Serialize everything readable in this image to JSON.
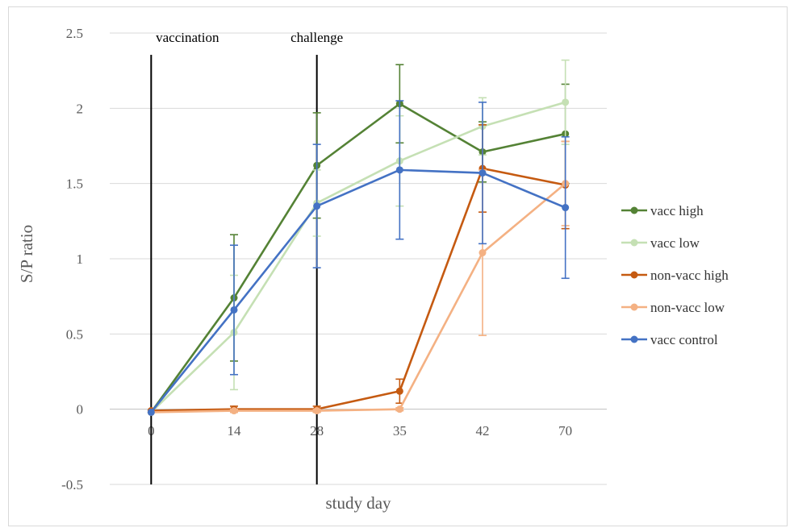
{
  "chart_data": {
    "type": "line",
    "title": "",
    "xlabel": "study day",
    "ylabel": "S/P ratio",
    "categories": [
      "0",
      "14",
      "28",
      "35",
      "42",
      "70"
    ],
    "ylim": [
      -0.5,
      2.5
    ],
    "yticks": [
      -0.5,
      0,
      0.5,
      1,
      1.5,
      2,
      2.5
    ],
    "ytick_labels": [
      "-0.5",
      "0",
      "0.5",
      "1",
      "1.5",
      "2",
      "2.5"
    ],
    "grid": "horizontal",
    "legend_position": "right",
    "annotations": [
      {
        "label": "vaccination",
        "category": "0"
      },
      {
        "label": "challenge",
        "category": "28"
      }
    ],
    "series": [
      {
        "name": "vacc high",
        "color": "#548235",
        "values": [
          -0.02,
          0.74,
          1.62,
          2.03,
          1.71,
          1.83
        ],
        "errors": [
          0,
          0.42,
          0.35,
          0.26,
          0.2,
          0.33
        ]
      },
      {
        "name": "vacc low",
        "color": "#c5e0b4",
        "values": [
          -0.02,
          0.51,
          1.37,
          1.65,
          1.88,
          2.04
        ],
        "errors": [
          0,
          0.38,
          0.22,
          0.3,
          0.19,
          0.28
        ]
      },
      {
        "name": "non-vacc high",
        "color": "#c55a11",
        "values": [
          -0.01,
          0.0,
          0.0,
          0.12,
          1.6,
          1.49
        ],
        "errors": [
          0,
          0.02,
          0.02,
          0.08,
          0.29,
          0.29
        ]
      },
      {
        "name": "non-vacc low",
        "color": "#f4b183",
        "values": [
          -0.02,
          -0.01,
          -0.01,
          0.0,
          1.04,
          1.5
        ],
        "errors": [
          0,
          0.01,
          0.01,
          0.01,
          0.55,
          0.28
        ]
      },
      {
        "name": "vacc control",
        "color": "#4472c4",
        "values": [
          -0.02,
          0.66,
          1.35,
          1.59,
          1.57,
          1.34
        ],
        "errors": [
          0,
          0.43,
          0.41,
          0.46,
          0.47,
          0.47
        ]
      }
    ]
  }
}
